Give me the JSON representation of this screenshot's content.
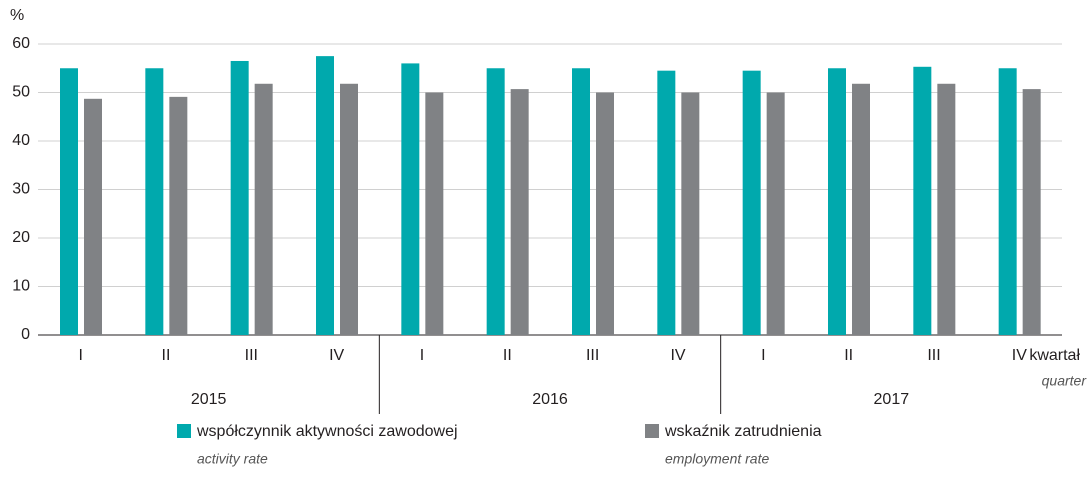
{
  "chart_data": {
    "type": "bar",
    "y_label": "%",
    "x_label": "kwartał",
    "x_label_en": "quarter",
    "categories": [
      "I",
      "II",
      "III",
      "IV",
      "I",
      "II",
      "III",
      "IV",
      "I",
      "II",
      "III",
      "IV"
    ],
    "year_groups": [
      "2015",
      "2016",
      "2017"
    ],
    "series": [
      {
        "name": "współczynnik aktywności zawodowej",
        "name_en": "activity rate",
        "color": "#00a9ad",
        "values": [
          55,
          55,
          56.5,
          57.5,
          56,
          55,
          55,
          54.5,
          54.5,
          55,
          55.3,
          55
        ]
      },
      {
        "name": "wskaźnik zatrudnienia",
        "name_en": "employment rate",
        "color": "#808285",
        "values": [
          48.7,
          49.1,
          51.8,
          51.8,
          50,
          50.7,
          50,
          50,
          50,
          51.8,
          51.8,
          50.7
        ]
      }
    ],
    "ylim": [
      0,
      60
    ],
    "yticks": [
      0,
      10,
      20,
      30,
      40,
      50,
      60
    ],
    "grid": true
  }
}
